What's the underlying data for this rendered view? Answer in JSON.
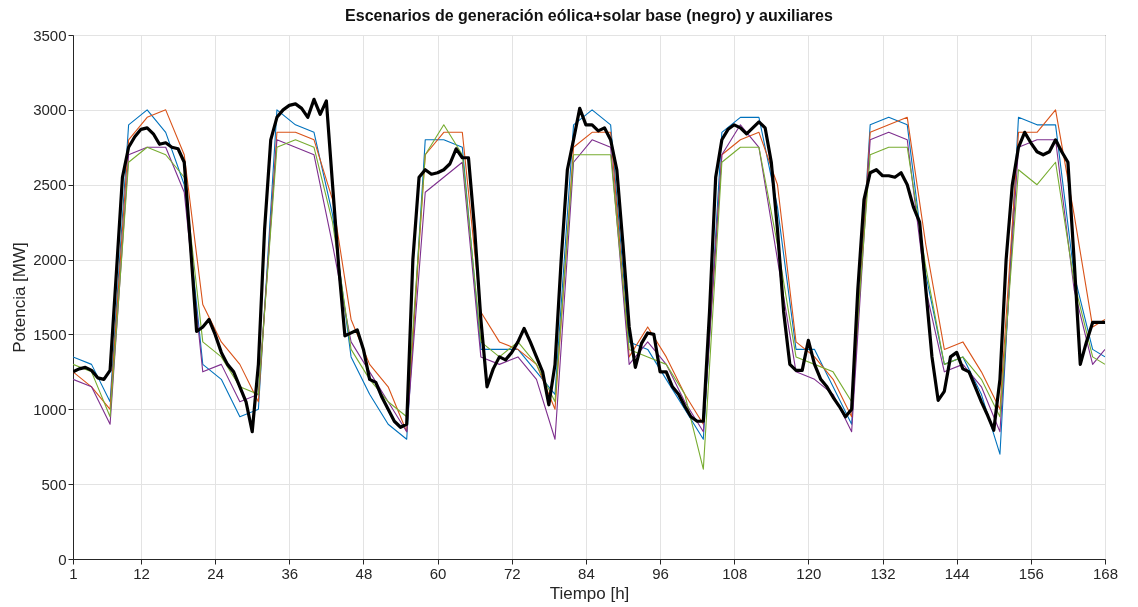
{
  "chart_data": {
    "type": "line",
    "title": "Escenarios de generación eólica+solar base (negro) y auxiliares",
    "xlabel": "Tiempo [h]",
    "ylabel": "Potencia [MW]",
    "x": [
      1,
      2,
      3,
      4,
      5,
      6,
      7,
      8,
      9,
      10,
      11,
      12,
      13,
      14,
      15,
      16,
      17,
      18,
      19,
      20,
      21,
      22,
      23,
      24,
      25,
      26,
      27,
      28,
      29,
      30,
      31,
      32,
      33,
      34,
      35,
      36,
      37,
      38,
      39,
      40,
      41,
      42,
      43,
      44,
      45,
      46,
      47,
      48,
      49,
      50,
      51,
      52,
      53,
      54,
      55,
      56,
      57,
      58,
      59,
      60,
      61,
      62,
      63,
      64,
      65,
      66,
      67,
      68,
      69,
      70,
      71,
      72,
      73,
      74,
      75,
      76,
      77,
      78,
      79,
      80,
      81,
      82,
      83,
      84,
      85,
      86,
      87,
      88,
      89,
      90,
      91,
      92,
      93,
      94,
      95,
      96,
      97,
      98,
      99,
      100,
      101,
      102,
      103,
      104,
      105,
      106,
      107,
      108,
      109,
      110,
      111,
      112,
      113,
      114,
      115,
      116,
      117,
      118,
      119,
      120,
      121,
      122,
      123,
      124,
      125,
      126,
      127,
      128,
      129,
      130,
      131,
      132,
      133,
      134,
      135,
      136,
      137,
      138,
      139,
      140,
      141,
      142,
      143,
      144,
      145,
      146,
      147,
      148,
      149,
      150,
      151,
      152,
      153,
      154,
      155,
      156,
      157,
      158,
      159,
      160,
      161,
      162,
      163,
      164,
      165,
      166,
      167,
      168
    ],
    "xlim": [
      1,
      168
    ],
    "xticks": [
      1,
      12,
      24,
      36,
      48,
      60,
      72,
      84,
      96,
      108,
      120,
      132,
      144,
      156,
      168
    ],
    "ylim": [
      0,
      3500
    ],
    "yticks": [
      0,
      500,
      1000,
      1500,
      2000,
      2500,
      3000,
      3500
    ],
    "grid": true,
    "line_style": "solid",
    "series": [
      {
        "color": "#000000",
        "values": [
          1250,
          1270,
          1280,
          1260,
          1210,
          1200,
          1260,
          1900,
          2550,
          2750,
          2820,
          2870,
          2880,
          2840,
          2770,
          2780,
          2750,
          2740,
          2650,
          2100,
          1520,
          1550,
          1600,
          1500,
          1380,
          1300,
          1250,
          1150,
          1050,
          850,
          1300,
          2200,
          2800,
          2950,
          3000,
          3030,
          3040,
          3010,
          2950,
          3070,
          2970,
          3060,
          2500,
          1950,
          1490,
          1510,
          1530,
          1400,
          1200,
          1180,
          1080,
          1000,
          920,
          880,
          900,
          2000,
          2550,
          2600,
          2570,
          2580,
          2600,
          2640,
          2740,
          2680,
          2680,
          2200,
          1600,
          1150,
          1270,
          1350,
          1330,
          1380,
          1450,
          1540,
          1450,
          1350,
          1250,
          1030,
          1300,
          2000,
          2600,
          2800,
          3010,
          2900,
          2900,
          2860,
          2880,
          2800,
          2600,
          2100,
          1550,
          1280,
          1440,
          1510,
          1500,
          1250,
          1250,
          1150,
          1100,
          1020,
          950,
          920,
          920,
          1650,
          2550,
          2800,
          2870,
          2900,
          2880,
          2840,
          2880,
          2920,
          2880,
          2650,
          2200,
          1650,
          1300,
          1260,
          1260,
          1460,
          1300,
          1200,
          1150,
          1080,
          1020,
          950,
          1000,
          1800,
          2400,
          2580,
          2600,
          2560,
          2560,
          2550,
          2580,
          2500,
          2350,
          2250,
          1800,
          1350,
          1060,
          1120,
          1350,
          1380,
          1270,
          1250,
          1150,
          1050,
          960,
          860,
          1200,
          2000,
          2500,
          2750,
          2850,
          2780,
          2720,
          2700,
          2720,
          2800,
          2720,
          2650,
          2000,
          1300,
          1450,
          1580,
          1580,
          1580
        ]
      },
      {
        "color": "#0072bd",
        "x": [
          1,
          4,
          7,
          10,
          13,
          16,
          19,
          22,
          25,
          28,
          31,
          34,
          37,
          40,
          43,
          46,
          49,
          52,
          55,
          58,
          61,
          64,
          67,
          70,
          73,
          76,
          79,
          82,
          85,
          88,
          91,
          94,
          97,
          100,
          103,
          106,
          109,
          112,
          115,
          118,
          121,
          124,
          127,
          130,
          133,
          136,
          139,
          142,
          145,
          148,
          151,
          154,
          157,
          160,
          163,
          166,
          168
        ],
        "values": [
          1350,
          1300,
          1050,
          2900,
          3000,
          2850,
          2500,
          1300,
          1200,
          950,
          1000,
          3000,
          2900,
          2850,
          2300,
          1350,
          1100,
          900,
          800,
          2800,
          2800,
          2750,
          1400,
          1400,
          1400,
          1250,
          1100,
          2900,
          3000,
          2900,
          1450,
          1400,
          1200,
          1000,
          800,
          2850,
          2950,
          2950,
          2350,
          1400,
          1400,
          1150,
          900,
          2900,
          2950,
          2900,
          1900,
          1300,
          1350,
          1100,
          700,
          2950,
          2900,
          2900,
          1900,
          1400,
          1350
        ]
      },
      {
        "color": "#d95319",
        "x": [
          1,
          4,
          7,
          10,
          13,
          16,
          19,
          22,
          25,
          28,
          31,
          34,
          37,
          40,
          43,
          46,
          49,
          52,
          55,
          58,
          61,
          64,
          67,
          70,
          73,
          76,
          79,
          82,
          85,
          88,
          91,
          94,
          97,
          100,
          103,
          106,
          109,
          112,
          115,
          118,
          121,
          124,
          127,
          130,
          133,
          136,
          139,
          142,
          145,
          148,
          151,
          154,
          157,
          160,
          163,
          166,
          168
        ],
        "values": [
          1250,
          1150,
          1000,
          2800,
          2950,
          3000,
          2700,
          1700,
          1450,
          1300,
          1050,
          2850,
          2850,
          2800,
          2400,
          1600,
          1300,
          1150,
          850,
          2700,
          2850,
          2850,
          1650,
          1450,
          1400,
          1300,
          1000,
          2750,
          2850,
          2850,
          1350,
          1550,
          1350,
          1100,
          900,
          2700,
          2800,
          2850,
          2500,
          1450,
          1350,
          1200,
          950,
          2850,
          2900,
          2950,
          2100,
          1400,
          1450,
          1250,
          1000,
          2850,
          2850,
          3000,
          2300,
          1550,
          1600
        ]
      },
      {
        "color": "#7e2f8e",
        "x": [
          1,
          4,
          7,
          10,
          13,
          16,
          19,
          22,
          25,
          28,
          31,
          34,
          37,
          40,
          43,
          46,
          49,
          52,
          55,
          58,
          61,
          64,
          67,
          70,
          73,
          76,
          79,
          82,
          85,
          88,
          91,
          94,
          97,
          100,
          103,
          106,
          109,
          112,
          115,
          118,
          121,
          124,
          127,
          130,
          133,
          136,
          139,
          142,
          145,
          148,
          151,
          154,
          157,
          160,
          163,
          166,
          168
        ],
        "values": [
          1200,
          1150,
          900,
          2700,
          2750,
          2750,
          2450,
          1250,
          1300,
          1050,
          1100,
          2800,
          2750,
          2700,
          2100,
          1450,
          1250,
          1050,
          850,
          2450,
          2550,
          2650,
          1350,
          1300,
          1350,
          1200,
          800,
          2650,
          2800,
          2750,
          1300,
          1450,
          1300,
          1050,
          850,
          2700,
          2900,
          2750,
          2000,
          1250,
          1200,
          1100,
          850,
          2800,
          2850,
          2800,
          1800,
          1250,
          1300,
          1150,
          850,
          2750,
          2800,
          2800,
          1800,
          1300,
          1400
        ]
      },
      {
        "color": "#77ac30",
        "x": [
          1,
          4,
          7,
          10,
          13,
          16,
          19,
          22,
          25,
          28,
          31,
          34,
          37,
          40,
          43,
          46,
          49,
          52,
          55,
          58,
          61,
          64,
          67,
          70,
          73,
          76,
          79,
          82,
          85,
          88,
          91,
          94,
          97,
          100,
          103,
          106,
          109,
          112,
          115,
          118,
          121,
          124,
          127,
          130,
          133,
          136,
          139,
          142,
          145,
          148,
          151,
          154,
          157,
          160,
          163,
          166,
          168
        ],
        "values": [
          1300,
          1250,
          950,
          2650,
          2750,
          2700,
          2550,
          1450,
          1350,
          1150,
          1100,
          2750,
          2800,
          2750,
          2250,
          1400,
          1200,
          1050,
          950,
          2700,
          2900,
          2700,
          1450,
          1350,
          1450,
          1300,
          1050,
          2700,
          2700,
          2700,
          1400,
          1350,
          1300,
          1100,
          600,
          2650,
          2750,
          2750,
          2100,
          1350,
          1300,
          1250,
          1050,
          2700,
          2750,
          2750,
          1950,
          1300,
          1350,
          1200,
          950,
          2600,
          2500,
          2650,
          1850,
          1350,
          1300
        ]
      }
    ]
  }
}
